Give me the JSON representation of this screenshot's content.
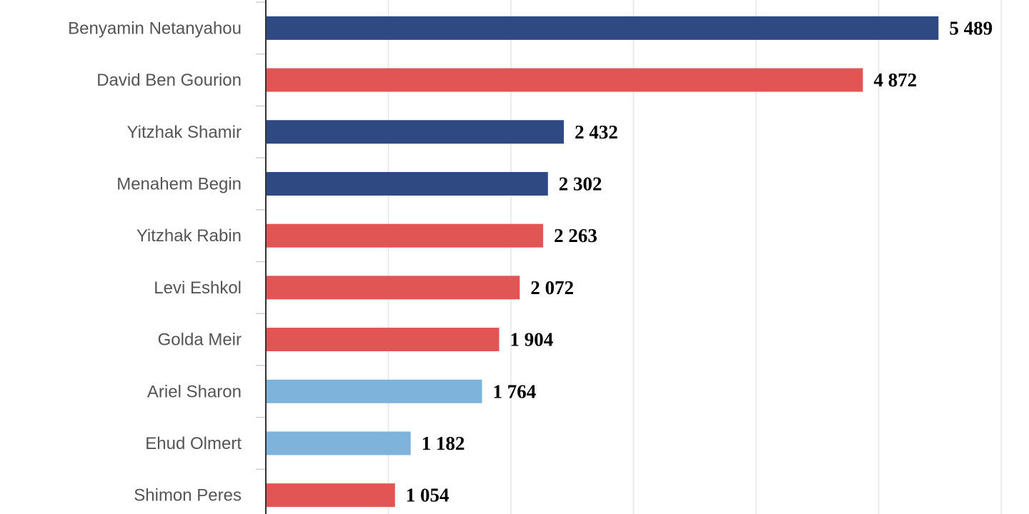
{
  "chart_data": {
    "type": "bar",
    "orientation": "horizontal",
    "categories": [
      "Benyamin Netanyahou",
      "David Ben Gourion",
      "Yitzhak Shamir",
      "Menahem Begin",
      "Yitzhak Rabin",
      "Levi Eshkol",
      "Golda Meir",
      "Ariel Sharon",
      "Ehud Olmert",
      "Shimon Peres"
    ],
    "values": [
      5489,
      4872,
      2432,
      2302,
      2263,
      2072,
      1904,
      1764,
      1182,
      1054
    ],
    "value_labels": [
      "5 489",
      "4 872",
      "2 432",
      "2 302",
      "2 263",
      "2 072",
      "1 904",
      "1 764",
      "1 182",
      "1 054"
    ],
    "bar_colors": [
      "#2f4a82",
      "#e15554",
      "#2f4a82",
      "#2f4a82",
      "#e15554",
      "#e15554",
      "#e15554",
      "#7eb3dc",
      "#7eb3dc",
      "#e15554"
    ],
    "xlim": [
      0,
      6000
    ],
    "x_gridlines": [
      0,
      1000,
      2000,
      3000,
      4000,
      5000,
      6000
    ],
    "grid": true,
    "legend": "none"
  }
}
